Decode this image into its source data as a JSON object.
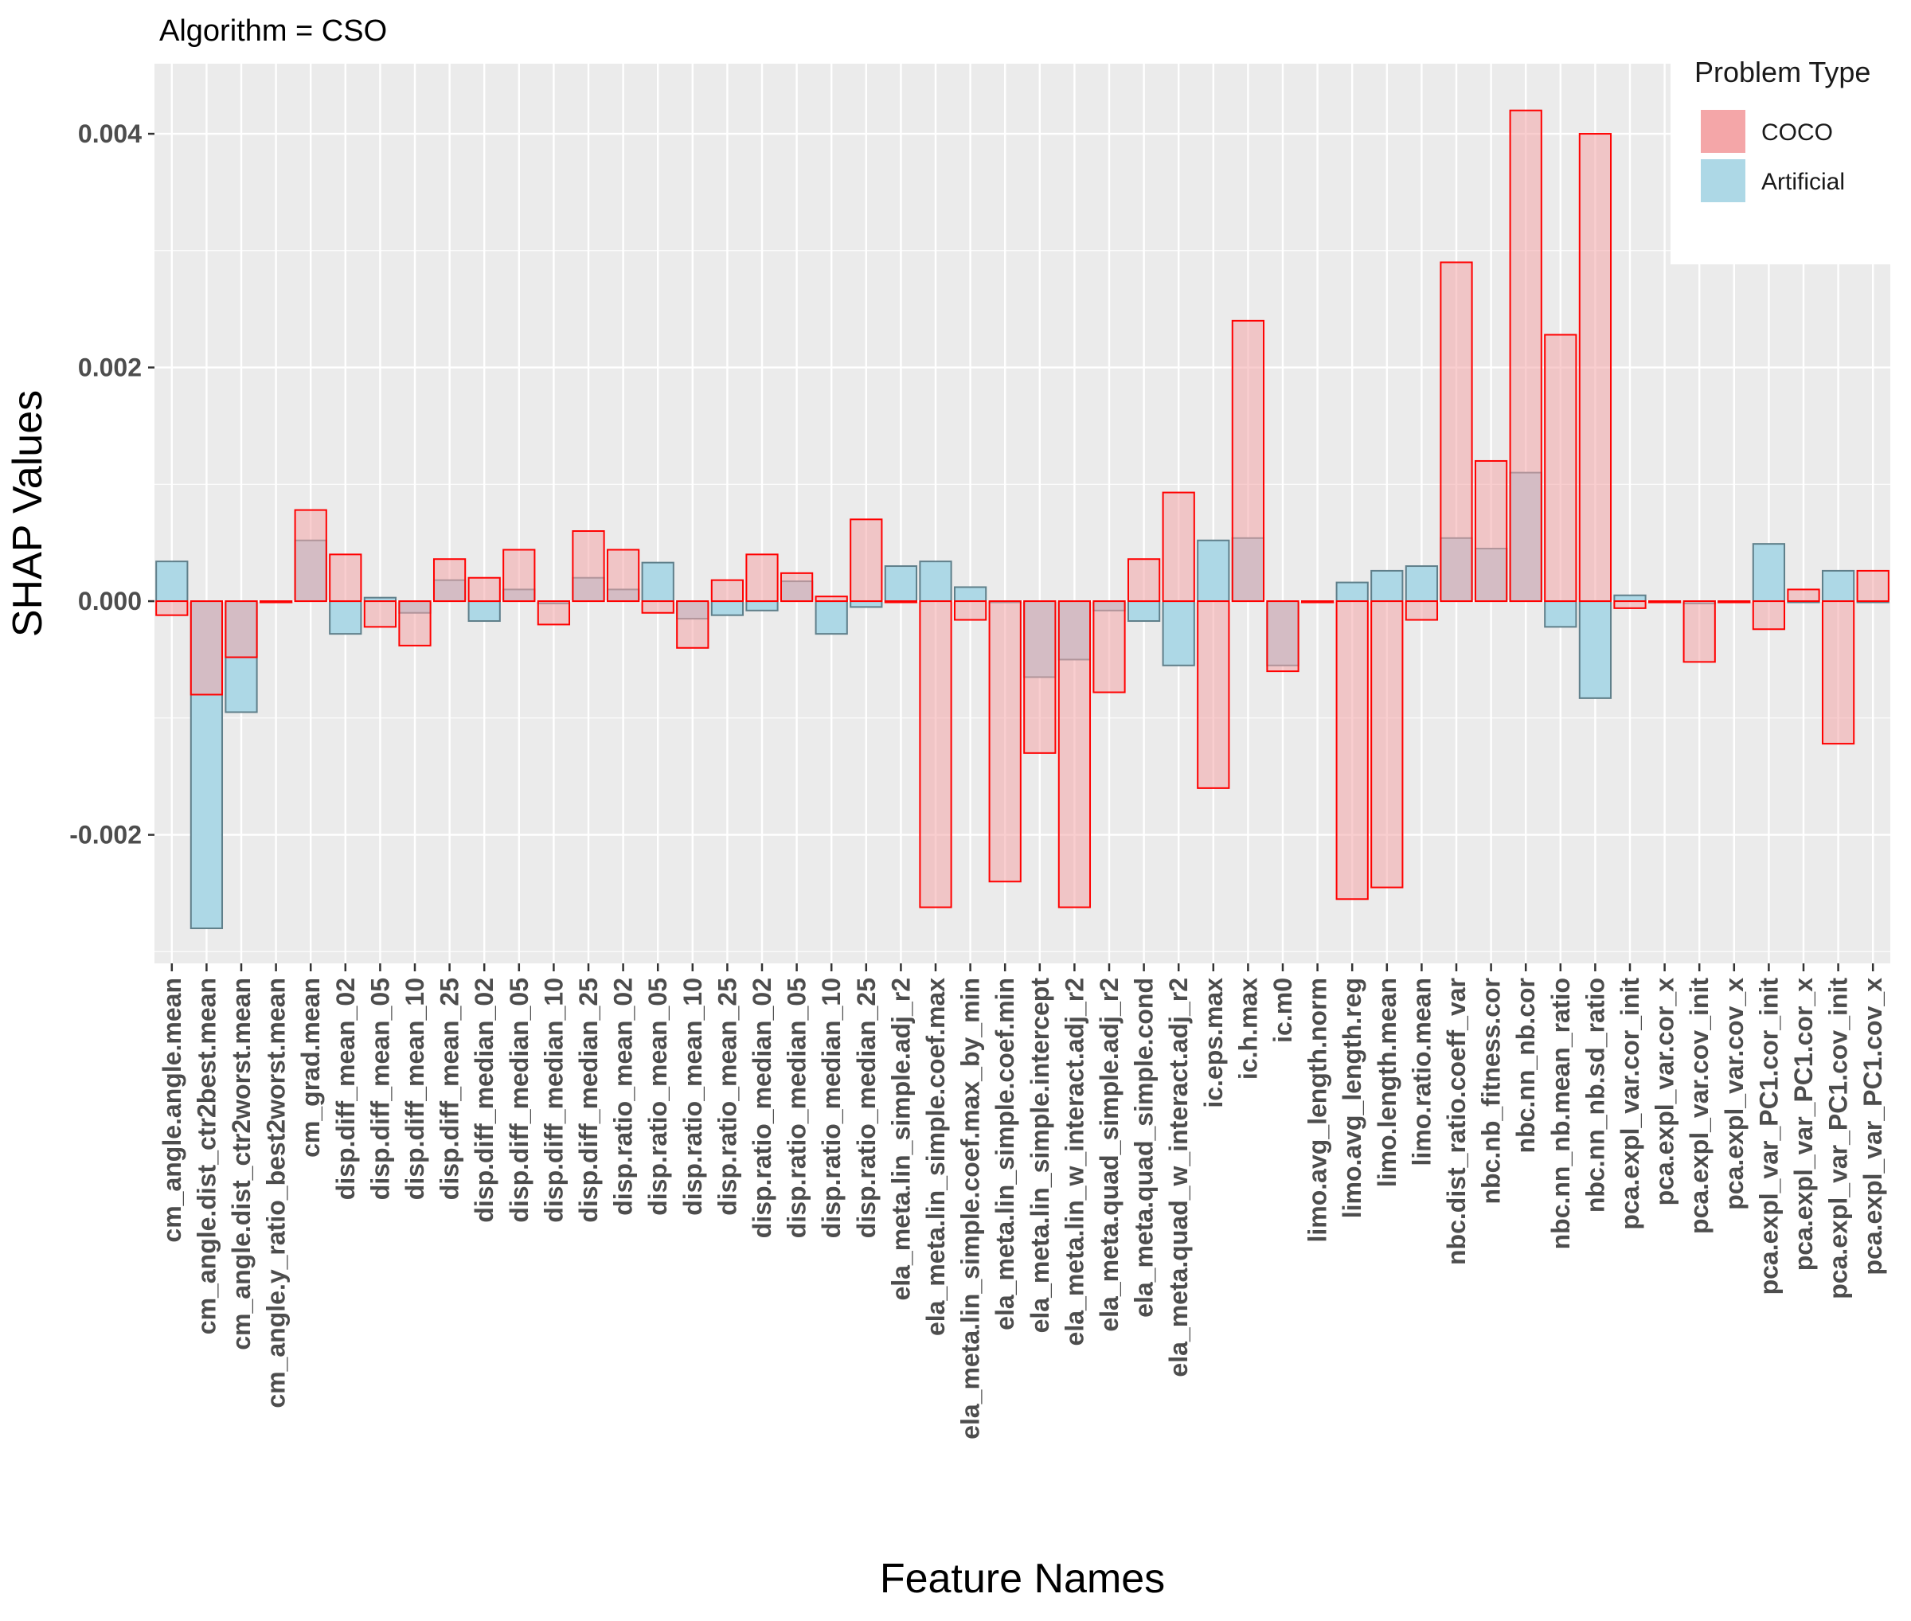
{
  "facet_title": "Algorithm = CSO",
  "legend": {
    "title": "Problem Type",
    "items": [
      {
        "label": "COCO",
        "fill": "#f4a6a8",
        "name": "legend-coco"
      },
      {
        "label": "Artificial",
        "fill": "#add8e6",
        "name": "legend-artificial"
      }
    ]
  },
  "chart_data": {
    "type": "bar",
    "title": "Algorithm = CSO",
    "xlabel": "Feature Names",
    "ylabel": "SHAP Values",
    "ylim": [
      -0.0031,
      0.0046
    ],
    "yticks": [
      -0.002,
      0.0,
      0.002,
      0.004
    ],
    "ytick_labels": [
      "-0.002",
      "0.000",
      "0.002",
      "0.004"
    ],
    "grid": true,
    "legend_position": "top-right",
    "colors": {
      "coco_fill": "#f4a6a8",
      "coco_stroke": "#ff0000",
      "artificial_fill": "#add8e6",
      "artificial_stroke": "#5f7f8a",
      "panel": "#ebebeb",
      "grid": "#ffffff"
    },
    "categories": [
      "cm_angle.angle.mean",
      "cm_angle.dist_ctr2best.mean",
      "cm_angle.dist_ctr2worst.mean",
      "cm_angle.y_ratio_best2worst.mean",
      "cm_grad.mean",
      "disp.diff_mean_02",
      "disp.diff_mean_05",
      "disp.diff_mean_10",
      "disp.diff_mean_25",
      "disp.diff_median_02",
      "disp.diff_median_05",
      "disp.diff_median_10",
      "disp.diff_median_25",
      "disp.ratio_mean_02",
      "disp.ratio_mean_05",
      "disp.ratio_mean_10",
      "disp.ratio_mean_25",
      "disp.ratio_median_02",
      "disp.ratio_median_05",
      "disp.ratio_median_10",
      "disp.ratio_median_25",
      "ela_meta.lin_simple.adj_r2",
      "ela_meta.lin_simple.coef.max",
      "ela_meta.lin_simple.coef.max_by_min",
      "ela_meta.lin_simple.coef.min",
      "ela_meta.lin_simple.intercept",
      "ela_meta.lin_w_interact.adj_r2",
      "ela_meta.quad_simple.adj_r2",
      "ela_meta.quad_simple.cond",
      "ela_meta.quad_w_interact.adj_r2",
      "ic.eps.max",
      "ic.h.max",
      "ic.m0",
      "limo.avg_length.norm",
      "limo.avg_length.reg",
      "limo.length.mean",
      "limo.ratio.mean",
      "nbc.dist_ratio.coeff_var",
      "nbc.nb_fitness.cor",
      "nbc.nn_nb.cor",
      "nbc.nn_nb.mean_ratio",
      "nbc.nn_nb.sd_ratio",
      "pca.expl_var.cor_init",
      "pca.expl_var.cor_x",
      "pca.expl_var.cov_init",
      "pca.expl_var.cov_x",
      "pca.expl_var_PC1.cor_init",
      "pca.expl_var_PC1.cor_x",
      "pca.expl_var_PC1.cov_init",
      "pca.expl_var_PC1.cov_x"
    ],
    "series": [
      {
        "name": "Artificial",
        "values": [
          0.00034,
          -0.0028,
          -0.00095,
          0.0,
          0.00052,
          -0.00028,
          3e-05,
          -0.0001,
          0.00018,
          -0.00017,
          0.0001,
          -2e-05,
          0.0002,
          0.0001,
          0.00033,
          -0.00015,
          -0.00012,
          -8e-05,
          0.00017,
          -0.00028,
          -5e-05,
          0.0003,
          0.00034,
          0.00012,
          0.0,
          -0.00065,
          -0.0005,
          -8e-05,
          -0.00017,
          -0.00055,
          0.00052,
          0.00054,
          -0.00055,
          0.0,
          0.00016,
          0.00026,
          0.0003,
          0.00054,
          0.00045,
          0.0011,
          -0.00022,
          -0.00083,
          5e-05,
          0.0,
          -2e-05,
          0.0,
          0.00049,
          0.0,
          0.00026,
          0.0
        ]
      },
      {
        "name": "COCO",
        "values": [
          -0.00012,
          -0.0008,
          -0.00048,
          0.0,
          0.00078,
          0.0004,
          -0.00022,
          -0.00038,
          0.00036,
          0.0002,
          0.00044,
          -0.0002,
          0.0006,
          0.00044,
          -0.0001,
          -0.0004,
          0.00018,
          0.0004,
          0.00024,
          4e-05,
          0.0007,
          -1e-05,
          -0.00262,
          -0.00016,
          -0.0024,
          -0.0013,
          -0.00262,
          -0.00078,
          0.00036,
          0.00093,
          -0.0016,
          0.0024,
          -0.0006,
          0.0,
          -0.00255,
          -0.00245,
          -0.00016,
          0.0029,
          0.0012,
          0.0042,
          0.00228,
          0.004,
          -6e-05,
          0.0,
          -0.00052,
          0.0,
          -0.00024,
          0.0001,
          -0.00122,
          0.00026
        ]
      }
    ]
  }
}
